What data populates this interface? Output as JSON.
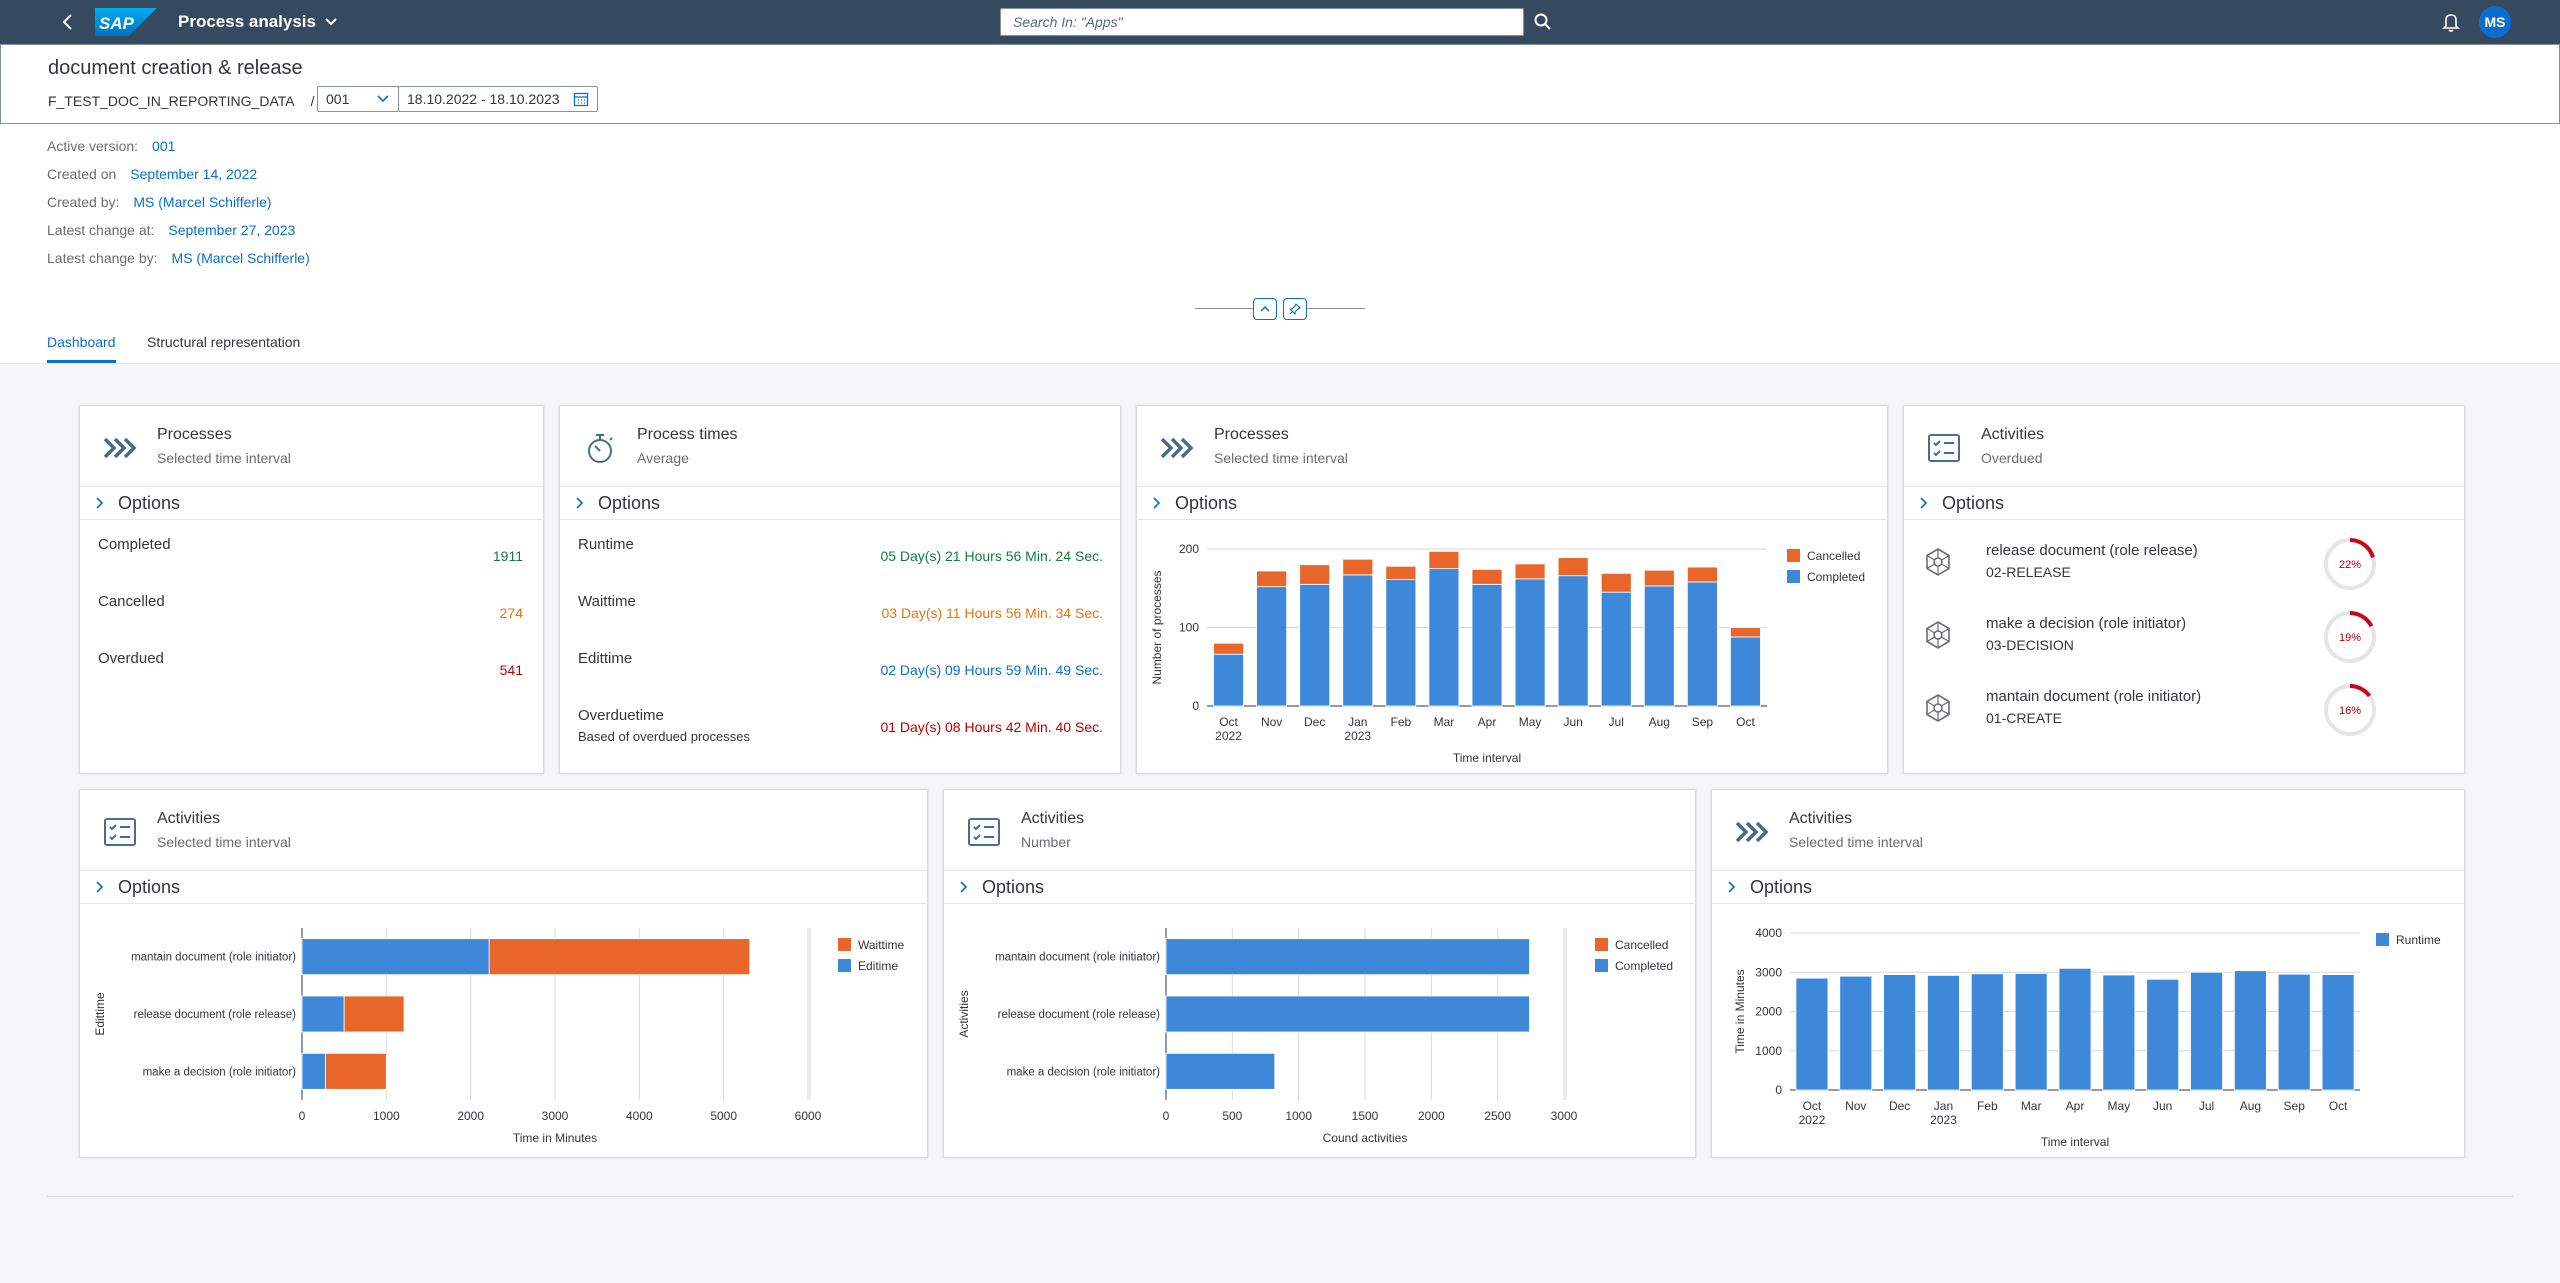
{
  "shell": {
    "app_title": "Process analysis",
    "search_placeholder": "Search In: \"Apps\"",
    "avatar_initials": "MS",
    "logo_text": "SAP"
  },
  "header": {
    "title": "document creation & release",
    "path_item": "F_TEST_DOC_IN_REPORTING_DATA",
    "path_sep": "/",
    "version_select": "001",
    "date_range": "18.10.2022 - 18.10.2023"
  },
  "info": [
    {
      "label": "Active version:",
      "value": "001"
    },
    {
      "label": "Created on",
      "value": "September 14, 2022"
    },
    {
      "label": "Created by:",
      "value": "MS (Marcel Schifferle)"
    },
    {
      "label": "Latest change at:",
      "value": "September 27, 2023"
    },
    {
      "label": "Latest change by:",
      "value": "MS (Marcel Schifferle)"
    }
  ],
  "tabs": [
    "Dashboard",
    "Structural representation"
  ],
  "options_label": "Options",
  "cards": {
    "processes_kpi": {
      "title": "Processes",
      "subtitle": "Selected time interval",
      "rows": [
        {
          "label": "Completed",
          "value": "1911"
        },
        {
          "label": "Cancelled",
          "value": "274"
        },
        {
          "label": "Overdued",
          "value": "541"
        }
      ]
    },
    "process_times": {
      "title": "Process times",
      "subtitle": "Average",
      "rows": [
        {
          "label": "Runtime",
          "value": "05 Day(s) 21 Hours 56 Min. 24 Sec."
        },
        {
          "label": "Waittime",
          "value": "03 Day(s) 11 Hours 56 Min. 34 Sec."
        },
        {
          "label": "Edittime",
          "value": "02 Day(s) 09 Hours 59 Min. 49 Sec."
        },
        {
          "label": "Overduetime",
          "value": "01 Day(s) 08 Hours 42 Min. 40 Sec.",
          "note": "Based of overdued processes"
        }
      ]
    },
    "processes_chart": {
      "title": "Processes",
      "subtitle": "Selected time interval"
    },
    "activities_overdued": {
      "title": "Activities",
      "subtitle": "Overdued",
      "items": [
        {
          "name": "release document (role release)",
          "code": "02-RELEASE",
          "percent": "22%"
        },
        {
          "name": "make a decision (role initiator)",
          "code": "03-DECISION",
          "percent": "19%"
        },
        {
          "name": "mantain document (role initiator)",
          "code": "01-CREATE",
          "percent": "16%"
        }
      ]
    },
    "activities_time": {
      "title": "Activities",
      "subtitle": "Selected time interval"
    },
    "activities_number": {
      "title": "Activities",
      "subtitle": "Number"
    },
    "activities_runtime": {
      "title": "Activities",
      "subtitle": "Selected time interval"
    }
  },
  "chart_data": [
    {
      "type": "bar",
      "stacked": true,
      "categories": [
        "Oct 2022",
        "Nov",
        "Dec",
        "Jan 2023",
        "Feb",
        "Mar",
        "Apr",
        "May",
        "Jun",
        "Jul",
        "Aug",
        "Sep",
        "Oct"
      ],
      "series": [
        {
          "name": "Completed",
          "values": [
            66,
            152,
            155,
            167,
            161,
            175,
            155,
            162,
            166,
            145,
            153,
            158,
            88
          ]
        },
        {
          "name": "Cancelled",
          "values": [
            14,
            20,
            25,
            20,
            17,
            22,
            19,
            19,
            23,
            24,
            20,
            19,
            12
          ]
        }
      ],
      "xlabel": "Time interval",
      "ylabel": "Number of processes",
      "ylim": [
        0,
        200
      ],
      "yticks": [
        0,
        100,
        200
      ],
      "legend_position": "right",
      "colors": {
        "Completed": "#3d88d9",
        "Cancelled": "#e8662a"
      }
    },
    {
      "type": "bar",
      "orientation": "horizontal",
      "stacked": true,
      "categories": [
        "mantain document (role initiator)",
        "release document (role release)",
        "make a decision (role initiator)"
      ],
      "series": [
        {
          "name": "Editime",
          "values": [
            2220,
            500,
            280
          ]
        },
        {
          "name": "Waittime",
          "values": [
            3090,
            710,
            720
          ]
        }
      ],
      "xlabel": "Time in Minutes",
      "ylabel": "Edittime",
      "xlim": [
        0,
        6000
      ],
      "xticks": [
        0,
        1000,
        2000,
        3000,
        4000,
        5000,
        6000
      ],
      "legend_position": "right",
      "colors": {
        "Editime": "#3d88d9",
        "Waittime": "#e8662a"
      }
    },
    {
      "type": "bar",
      "orientation": "horizontal",
      "stacked": true,
      "categories": [
        "mantain document (role initiator)",
        "release document (role release)",
        "make a decision (role initiator)"
      ],
      "series": [
        {
          "name": "Completed",
          "values": [
            2740,
            2740,
            820
          ]
        },
        {
          "name": "Cancelled",
          "values": [
            0,
            0,
            0
          ]
        }
      ],
      "xlabel": "Cound activities",
      "ylabel": "Activities",
      "xlim": [
        0,
        3000
      ],
      "xticks": [
        0,
        500,
        1000,
        1500,
        2000,
        2500,
        3000
      ],
      "legend_position": "right",
      "colors": {
        "Completed": "#3d88d9",
        "Cancelled": "#e8662a"
      }
    },
    {
      "type": "bar",
      "categories": [
        "Oct 2022",
        "Nov",
        "Dec",
        "Jan 2023",
        "Feb",
        "Mar",
        "Apr",
        "May",
        "Jun",
        "Jul",
        "Aug",
        "Sep",
        "Oct"
      ],
      "series": [
        {
          "name": "Runtime",
          "values": [
            2850,
            2900,
            2940,
            2920,
            2960,
            2970,
            3100,
            2930,
            2820,
            3000,
            3040,
            2950,
            2940
          ]
        }
      ],
      "xlabel": "Time interval",
      "ylabel": "Time in Minutes",
      "ylim": [
        0,
        4000
      ],
      "yticks": [
        0,
        1000,
        2000,
        3000,
        4000
      ],
      "legend_position": "right",
      "colors": {
        "Runtime": "#3d88d9"
      }
    }
  ]
}
